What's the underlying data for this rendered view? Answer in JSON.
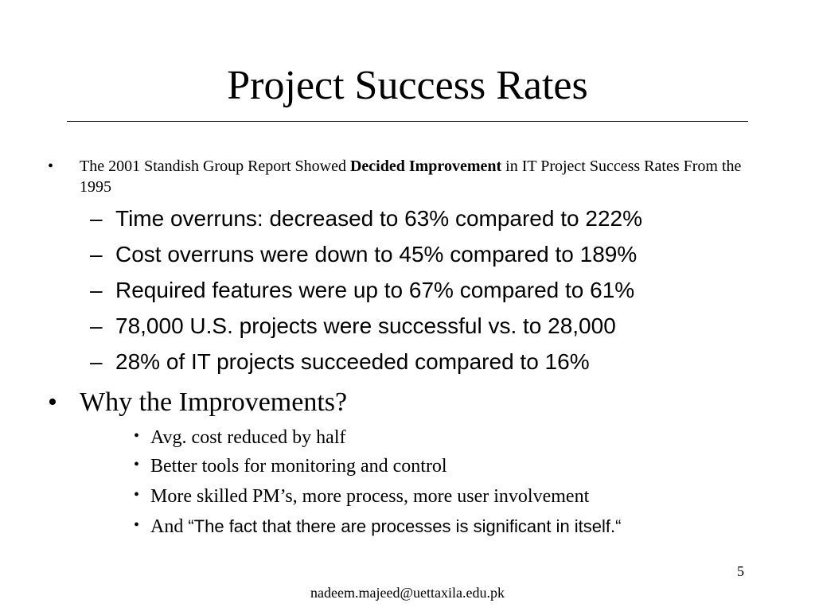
{
  "title": "Project Success Rates",
  "bullet1": {
    "marker": "•",
    "text_before": "The 2001 Standish Group Report Showed ",
    "text_bold": "Decided Improvement",
    "text_after": " in IT Project Success Rates From the 1995"
  },
  "sub_items": [
    {
      "marker": "–",
      "text": "Time overruns: decreased to 63% compared to 222%"
    },
    {
      "marker": "–",
      "text": "Cost overruns were down to 45% compared to 189%"
    },
    {
      "marker": "–",
      "text": "Required features were up to 67% compared to 61%"
    },
    {
      "marker": "–",
      "text": "78,000 U.S. projects were successful vs. to 28,000"
    },
    {
      "marker": "–",
      "text": "28% of IT projects succeeded compared to 16%"
    }
  ],
  "bullet2": {
    "marker": "•",
    "text": "Why the Improvements?"
  },
  "reasons": [
    {
      "marker": "•",
      "text": "Avg. cost reduced by half"
    },
    {
      "marker": "•",
      "text": "Better tools for monitoring and control"
    },
    {
      "marker": "•",
      "text": "More skilled PM’s, more process, more user involvement"
    }
  ],
  "last_reason": {
    "marker": "•",
    "text_serif": "And ",
    "text_sans": "“The fact that there are processes is significant in itself.“"
  },
  "page_number": "5",
  "footer": "nadeem.majeed@uettaxila.edu.pk"
}
